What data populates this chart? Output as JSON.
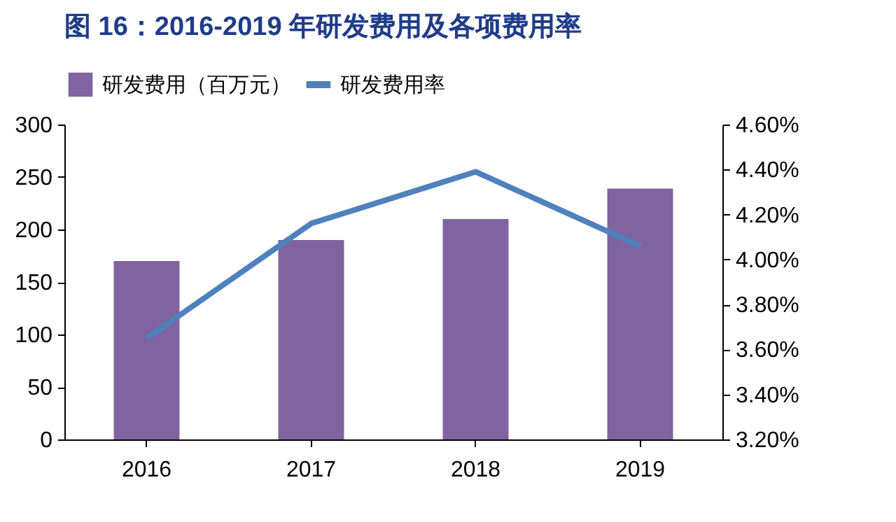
{
  "chart_data": {
    "type": "bar",
    "title": "图 16：2016-2019 年研发费用及各项费用率",
    "categories": [
      "2016",
      "2017",
      "2018",
      "2019"
    ],
    "series": [
      {
        "name": "研发费用（百万元）",
        "color": "#8064a2",
        "values": [
          170,
          190,
          210,
          239
        ]
      },
      {
        "name": "研发费用率",
        "type": "line",
        "axis": "y2",
        "color": "#4f81bd",
        "values": [
          3.65,
          4.16,
          4.39,
          4.06
        ]
      }
    ],
    "ylim": [
      0,
      300
    ],
    "yticks": [
      0,
      50,
      100,
      150,
      200,
      250,
      300
    ],
    "y2lim": [
      3.2,
      4.6
    ],
    "y2ticks": [
      {
        "value": 3.2,
        "label": "3.20%"
      },
      {
        "value": 3.4,
        "label": "3.40%"
      },
      {
        "value": 3.6,
        "label": "3.60%"
      },
      {
        "value": 3.8,
        "label": "3.80%"
      },
      {
        "value": 4.0,
        "label": "4.00%"
      },
      {
        "value": 4.2,
        "label": "4.20%"
      },
      {
        "value": 4.4,
        "label": "4.40%"
      },
      {
        "value": 4.6,
        "label": "4.60%"
      }
    ],
    "grid": false,
    "legend": "top"
  }
}
